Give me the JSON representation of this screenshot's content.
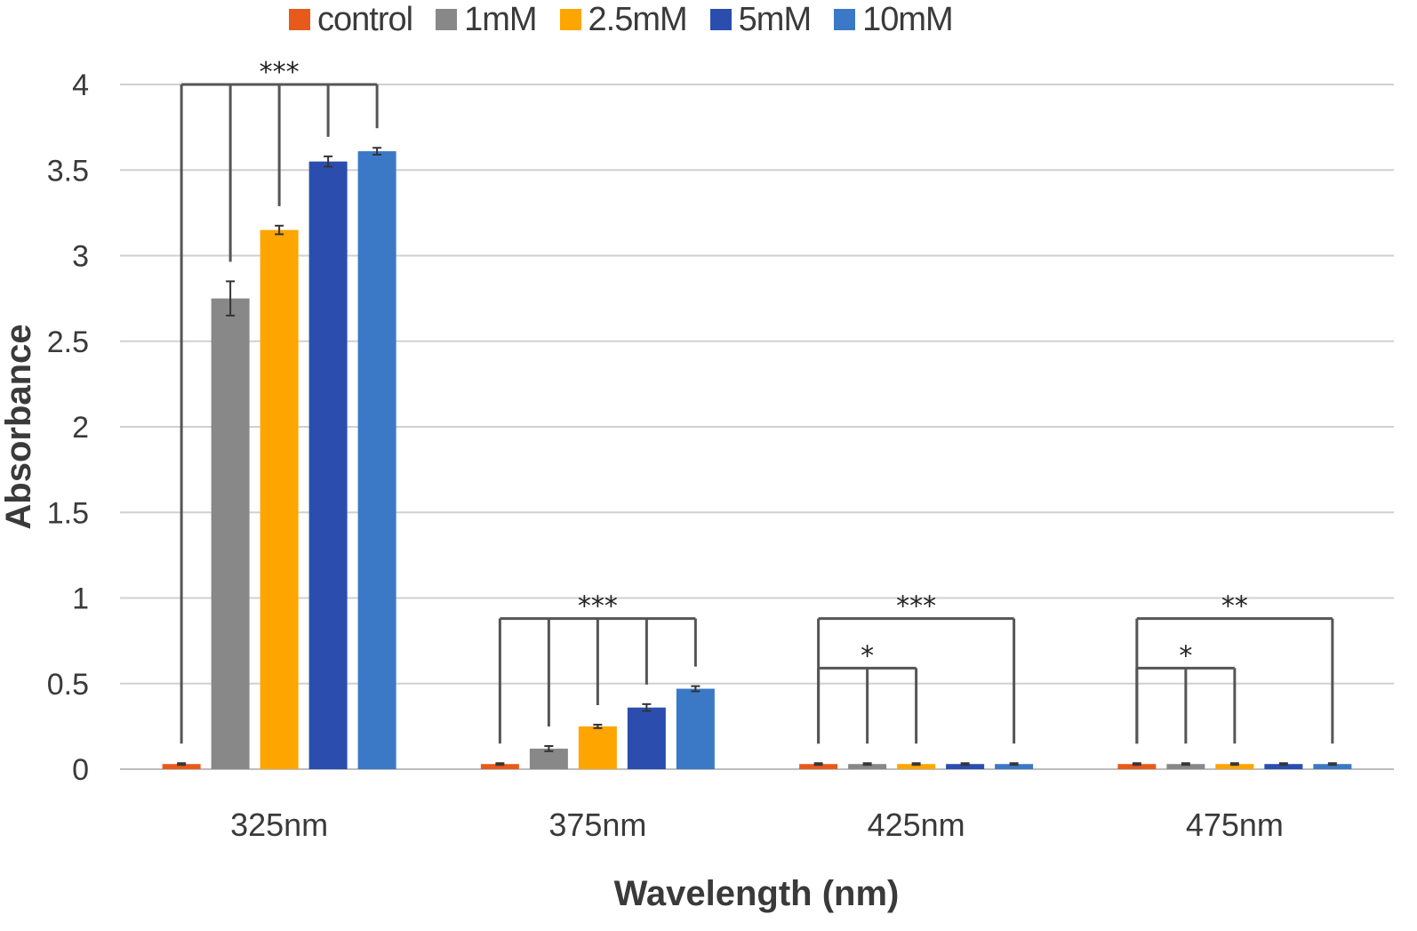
{
  "chart_data": {
    "type": "bar",
    "title": "",
    "xlabel": "Wavelength (nm)",
    "ylabel": "Absorbance",
    "ylim": [
      0,
      4
    ],
    "yticks": [
      "0",
      "0.5",
      "1",
      "1.5",
      "2",
      "2.5",
      "3",
      "3.5",
      "4"
    ],
    "ytick_values": [
      0,
      0.5,
      1,
      1.5,
      2,
      2.5,
      3,
      3.5,
      4
    ],
    "grid": true,
    "legend_position": "top",
    "categories": [
      "325nm",
      "375nm",
      "425nm",
      "475nm"
    ],
    "series": [
      {
        "name": "control",
        "color": "#e85a1c",
        "values": [
          0.03,
          0.03,
          0.03,
          0.03
        ],
        "errors": [
          0.005,
          0.005,
          0.005,
          0.005
        ]
      },
      {
        "name": "1mM",
        "color": "#888888",
        "values": [
          2.75,
          0.12,
          0.03,
          0.03
        ],
        "errors": [
          0.1,
          0.015,
          0.005,
          0.005
        ]
      },
      {
        "name": "2.5mM",
        "color": "#ffa500",
        "values": [
          3.15,
          0.25,
          0.03,
          0.03
        ],
        "errors": [
          0.025,
          0.01,
          0.005,
          0.005
        ]
      },
      {
        "name": "5mM",
        "color": "#2b4eae",
        "values": [
          3.55,
          0.36,
          0.03,
          0.03
        ],
        "errors": [
          0.03,
          0.02,
          0.005,
          0.005
        ]
      },
      {
        "name": "10mM",
        "color": "#3b79c6",
        "values": [
          3.61,
          0.47,
          0.03,
          0.03
        ],
        "errors": [
          0.02,
          0.015,
          0.005,
          0.005
        ]
      }
    ],
    "annotations": [
      {
        "category": "325nm",
        "label": "***",
        "from_series": 0,
        "to_series": [
          1,
          2,
          3,
          4
        ],
        "level": 4.0
      },
      {
        "category": "375nm",
        "label": "***",
        "from_series": 0,
        "to_series": [
          1,
          2,
          3,
          4
        ],
        "level": 0.88
      },
      {
        "category": "425nm",
        "label": "***",
        "from_series": 0,
        "to_series": [
          4
        ],
        "level": 0.88
      },
      {
        "category": "425nm",
        "label": "*",
        "from_series": 0,
        "to_series": [
          1,
          2
        ],
        "level": 0.59
      },
      {
        "category": "475nm",
        "label": "**",
        "from_series": 0,
        "to_series": [
          4
        ],
        "level": 0.88
      },
      {
        "category": "475nm",
        "label": "*",
        "from_series": 0,
        "to_series": [
          1,
          2
        ],
        "level": 0.59
      }
    ]
  }
}
